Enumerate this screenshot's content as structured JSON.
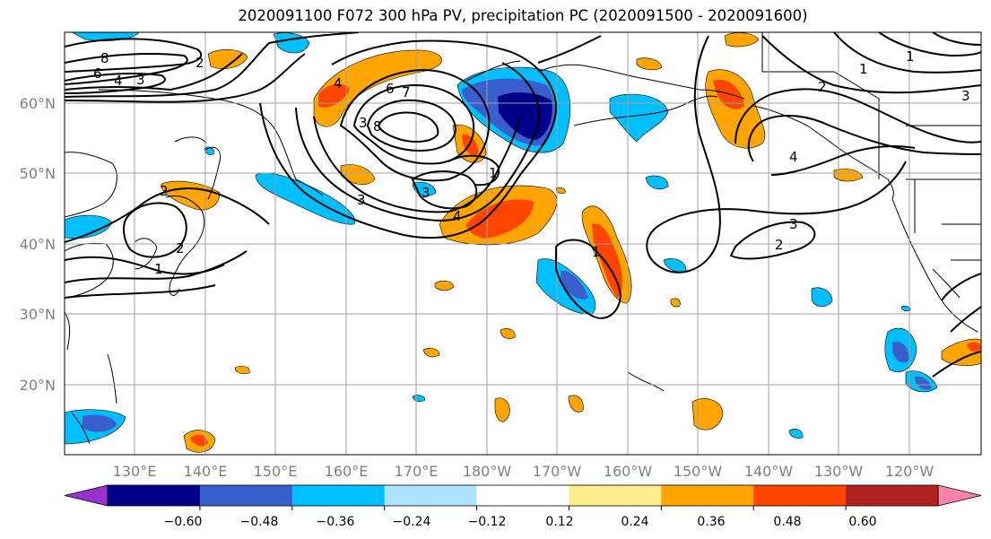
{
  "title": "2020091100 F072 300 hPa PV, precipitation PC (2020091500 - 2020091600)",
  "map": {
    "lat_labels": [
      "60°N",
      "50°N",
      "40°N",
      "30°N",
      "20°N"
    ],
    "lon_labels": [
      "130°E",
      "140°E",
      "150°E",
      "160°E",
      "170°E",
      "180°W",
      "170°W",
      "160°W",
      "150°W",
      "140°W",
      "130°W",
      "120°W"
    ],
    "contour_labels": [
      "8",
      "6",
      "4",
      "3",
      "2",
      "6",
      "7",
      "4",
      "3",
      "8",
      "3",
      "1",
      "4",
      "3",
      "2",
      "1",
      "1",
      "2",
      "1",
      "4",
      "2",
      "3",
      "2",
      "1",
      "3"
    ]
  },
  "colorbar": {
    "ticks": [
      "−0.60",
      "−0.48",
      "−0.36",
      "−0.24",
      "−0.12",
      "0.12",
      "0.24",
      "0.36",
      "0.48",
      "0.60"
    ],
    "colors": [
      "#9932cc",
      "#00008b",
      "#3a5fcd",
      "#00bfff",
      "#b0e2ff",
      "#ffffff",
      "#ffec8b",
      "#ffa500",
      "#ff4500",
      "#b22222",
      "#ff82ab"
    ]
  }
}
